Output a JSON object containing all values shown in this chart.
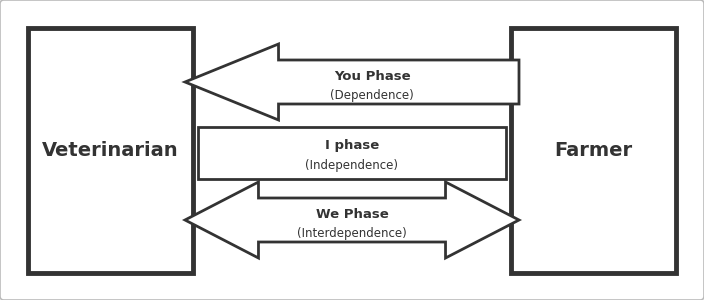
{
  "bg_color": "#ffffff",
  "outer_border_color": "#bbbbbb",
  "box_color": "#ffffff",
  "box_edge_color": "#333333",
  "arrow_face_color": "#ffffff",
  "arrow_edge_color": "#333333",
  "text_color": "#333333",
  "vet_label": "Veterinarian",
  "farmer_label": "Farmer",
  "phase1_label": "You Phase",
  "phase1_sub": "(Dependence)",
  "phase2_label": "I phase",
  "phase2_sub": "(Independence)",
  "phase3_label": "We Phase",
  "phase3_sub": "(Interdependence)",
  "fig_width": 7.04,
  "fig_height": 3.0,
  "dpi": 100
}
